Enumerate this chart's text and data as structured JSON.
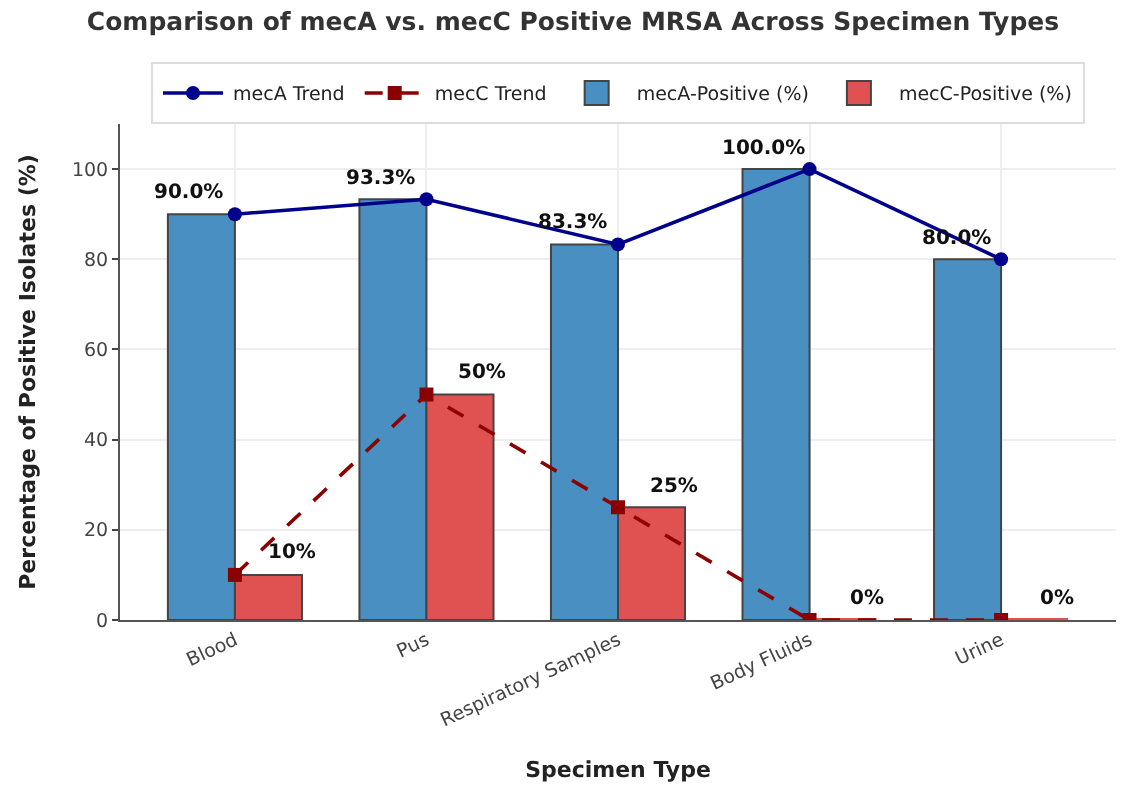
{
  "chart_data": {
    "type": "bar",
    "title": "Comparison of mecA vs. mecC Positive MRSA Across Specimen Types",
    "xlabel": "Specimen Type",
    "ylabel": "Percentage of Positive Isolates (%)",
    "categories": [
      "Blood",
      "Pus",
      "Respiratory Samples",
      "Body Fluids",
      "Urine"
    ],
    "series": [
      {
        "name": "mecA Trend",
        "type": "line",
        "color": "#00008b",
        "marker": "circle",
        "line_style": "solid",
        "values": [
          90.0,
          93.3,
          83.3,
          100.0,
          80.0
        ]
      },
      {
        "name": "mecC Trend",
        "type": "line",
        "color": "#8b0000",
        "marker": "square",
        "line_style": "dashed",
        "values": [
          10,
          50,
          25,
          0,
          0
        ]
      },
      {
        "name": "mecA-Positive (%)",
        "color": "#4a8fc2",
        "values": [
          90.0,
          93.3,
          83.3,
          100.0,
          80.0
        ],
        "value_labels": [
          "90.0%",
          "93.3%",
          "83.3%",
          "100.0%",
          "80.0%"
        ]
      },
      {
        "name": "mecC-Positive (%)",
        "color": "#e05252",
        "values": [
          10,
          50,
          25,
          0,
          0
        ],
        "value_labels": [
          "10%",
          "50%",
          "25%",
          "0%",
          "0%"
        ]
      }
    ],
    "ylim": [
      0,
      110
    ],
    "yticks": [
      0,
      20,
      40,
      60,
      80,
      100
    ],
    "grid": true,
    "legend": "top"
  }
}
